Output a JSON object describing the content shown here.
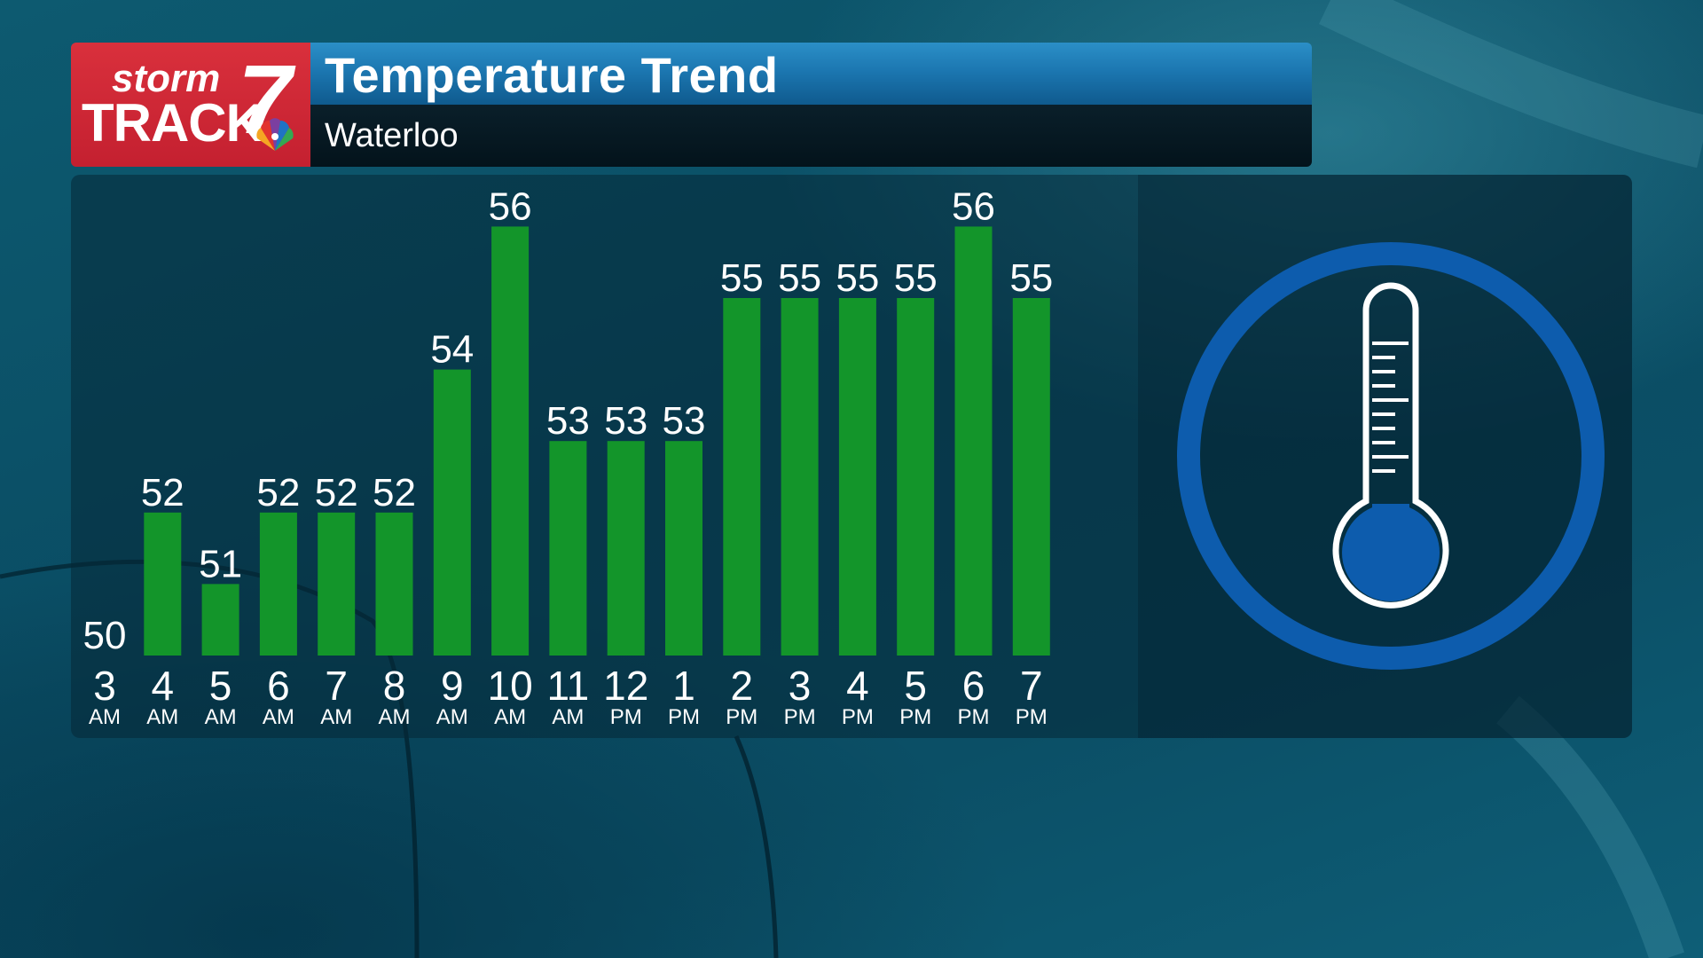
{
  "header": {
    "title": "Temperature Trend",
    "location": "Waterloo",
    "logo": {
      "word_top": "storm",
      "word_main": "TRACK",
      "channel": "7",
      "network_icon": "peacock-icon"
    }
  },
  "colors": {
    "bar": "#13952a",
    "title_bar": "#1c77b1",
    "logo_red": "#d12a37",
    "icon_blue": "#0d5cad"
  },
  "icon": "thermometer-icon",
  "chart_data": {
    "type": "bar",
    "title": "Temperature Trend",
    "subtitle": "Waterloo",
    "categories": [
      "3 AM",
      "4 AM",
      "5 AM",
      "6 AM",
      "7 AM",
      "8 AM",
      "9 AM",
      "10 AM",
      "11 AM",
      "12 PM",
      "1 PM",
      "2 PM",
      "3 PM",
      "4 PM",
      "5 PM",
      "6 PM",
      "7 PM"
    ],
    "hours": [
      "3",
      "4",
      "5",
      "6",
      "7",
      "8",
      "9",
      "10",
      "11",
      "12",
      "1",
      "2",
      "3",
      "4",
      "5",
      "6",
      "7"
    ],
    "periods": [
      "AM",
      "AM",
      "AM",
      "AM",
      "AM",
      "AM",
      "AM",
      "AM",
      "AM",
      "PM",
      "PM",
      "PM",
      "PM",
      "PM",
      "PM",
      "PM",
      "PM"
    ],
    "values": [
      50,
      52,
      51,
      52,
      52,
      52,
      54,
      56,
      53,
      53,
      53,
      55,
      55,
      55,
      55,
      56,
      55
    ],
    "xlabel": "",
    "ylabel": "",
    "ylim": [
      50,
      56
    ],
    "grid": false,
    "legend": "none"
  }
}
